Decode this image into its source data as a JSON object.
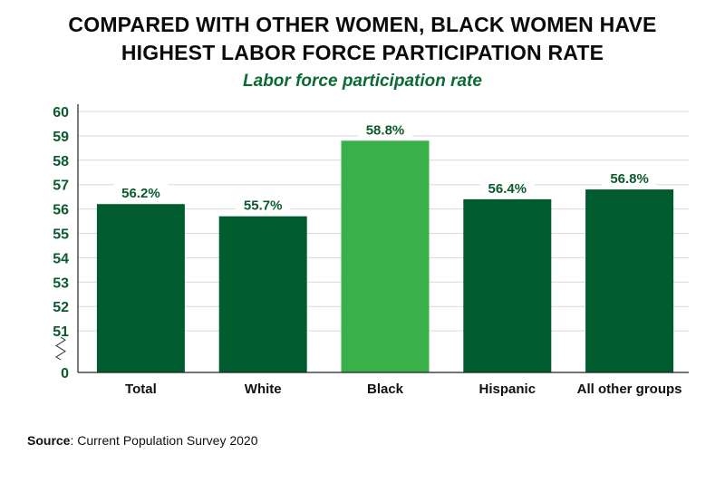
{
  "title_line1": "COMPARED WITH OTHER WOMEN, BLACK WOMEN HAVE",
  "title_line2": "HIGHEST LABOR FORCE PARTICIPATION RATE",
  "subtitle": "Labor force participation rate",
  "source_label": "Source",
  "source_text": ": Current Population Survey 2020",
  "colors": {
    "bar": "#005c2e",
    "highlight_bar": "#39b04a",
    "subtitle": "#0b6b34",
    "value_label": "#0b5a2c",
    "axis_tick_label": "#0b5a2c",
    "grid": "#d9d9d9"
  },
  "chart_data": {
    "type": "bar",
    "categories": [
      "Total",
      "White",
      "Black",
      "Hispanic",
      "All other groups"
    ],
    "values": [
      56.2,
      55.7,
      58.8,
      56.4,
      56.8
    ],
    "value_labels": [
      "56.2%",
      "55.7%",
      "58.8%",
      "56.4%",
      "56.8%"
    ],
    "highlight_category": "Black",
    "title": "COMPARED WITH OTHER WOMEN, BLACK WOMEN HAVE HIGHEST LABOR FORCE PARTICIPATION RATE",
    "subtitle": "Labor force participation rate",
    "xlabel": "",
    "ylabel": "",
    "ylim": [
      50,
      60
    ],
    "axis_break": true,
    "yticks": [
      "0",
      "51",
      "52",
      "53",
      "54",
      "55",
      "56",
      "57",
      "58",
      "59",
      "60"
    ],
    "grid": true
  }
}
